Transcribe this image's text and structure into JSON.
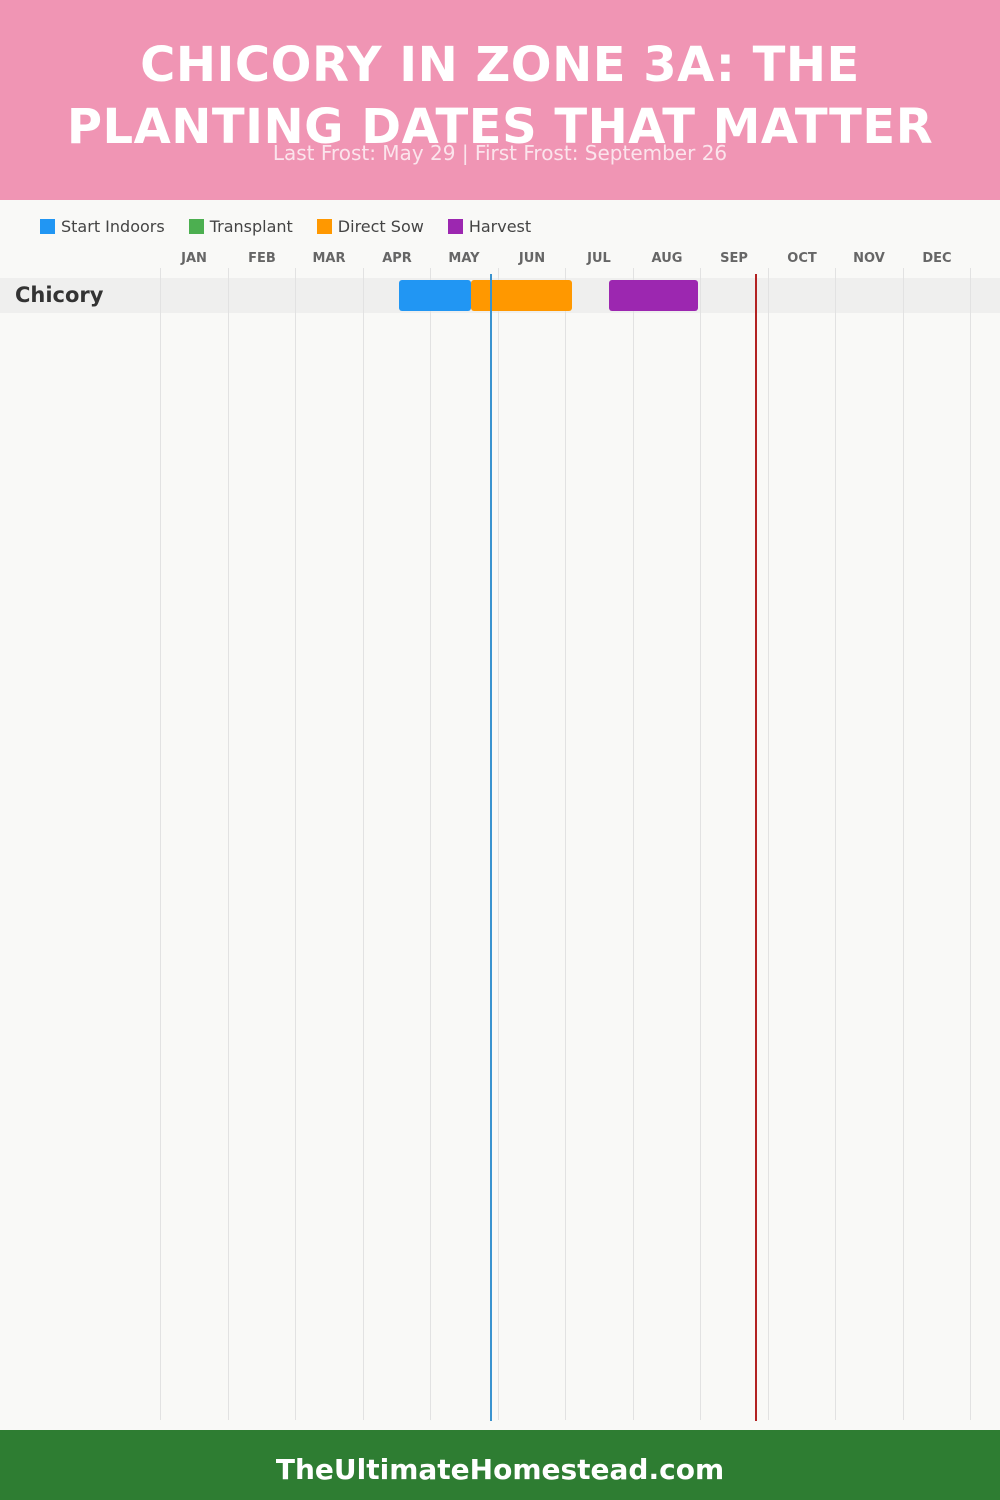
{
  "header": {
    "title": "CHICORY IN ZONE 3A: THE PLANTING DATES THAT MATTER",
    "subtitle": "Last Frost: May 29 | First Frost: September 26"
  },
  "legend": [
    {
      "label": "Start Indoors",
      "color": "#2196f3"
    },
    {
      "label": "Transplant",
      "color": "#4caf50"
    },
    {
      "label": "Direct Sow",
      "color": "#ff9800"
    },
    {
      "label": "Harvest",
      "color": "#9c27b0"
    }
  ],
  "footer": {
    "text": "TheUltimateHomestead.com"
  },
  "chart_data": {
    "type": "gantt",
    "months": [
      "JAN",
      "FEB",
      "MAR",
      "APR",
      "MAY",
      "JUN",
      "JUL",
      "AUG",
      "SEP",
      "OCT",
      "NOV",
      "DEC"
    ],
    "x_range": [
      "Jan 1",
      "Dec 31"
    ],
    "grid": true,
    "legend_position": "top-left",
    "rows": [
      {
        "crop": "Chicory",
        "activities": [
          {
            "phase": "Start Indoors",
            "start": "Apr 17",
            "end": "May 20",
            "color": "#2196f3"
          },
          {
            "phase": "Direct Sow",
            "start": "May 20",
            "end": "Jul 4",
            "color": "#ff9800"
          },
          {
            "phase": "Harvest",
            "start": "Jul 21",
            "end": "Aug 31",
            "color": "#9c27b0"
          }
        ]
      }
    ],
    "markers": [
      {
        "name": "Last Frost",
        "date": "May 29",
        "color": "#3a93cf"
      },
      {
        "name": "First Frost",
        "date": "Sep 26",
        "color": "#b22222"
      }
    ]
  }
}
